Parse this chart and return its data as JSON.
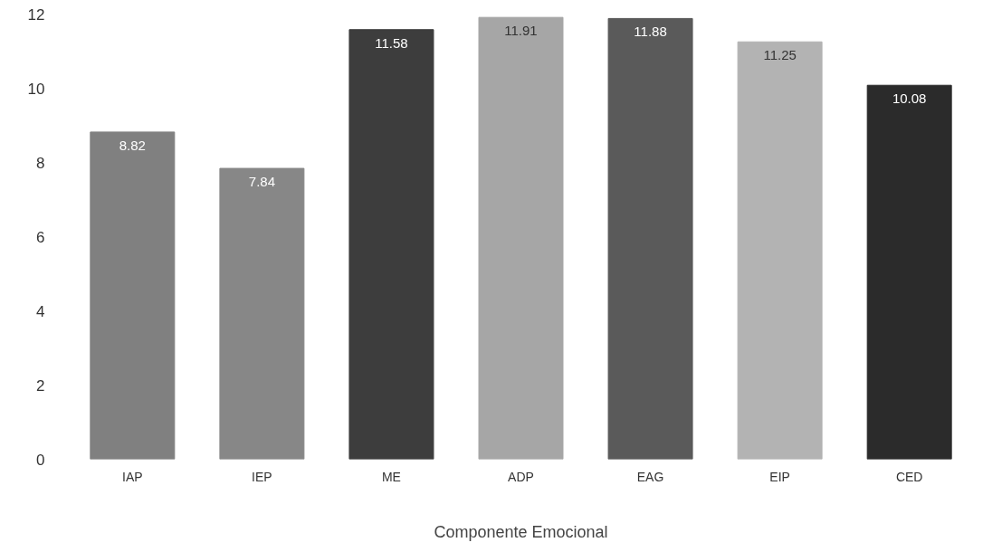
{
  "chart_data": {
    "type": "bar",
    "xlabel": "Componente Emocional",
    "categories": [
      "IAP",
      "IEP",
      "ME",
      "ADP",
      "EAG",
      "EIP",
      "CED"
    ],
    "values": [
      8.82,
      7.84,
      11.58,
      11.91,
      11.88,
      11.25,
      10.08
    ],
    "colors": [
      "#808080",
      "#878787",
      "#3d3d3d",
      "#a6a6a6",
      "#5a5a5a",
      "#b3b3b3",
      "#2b2b2b"
    ],
    "ylim": [
      0,
      12
    ],
    "yticks": [
      0,
      2,
      4,
      6,
      8,
      10,
      12
    ],
    "grid": false,
    "data_labels": true
  }
}
